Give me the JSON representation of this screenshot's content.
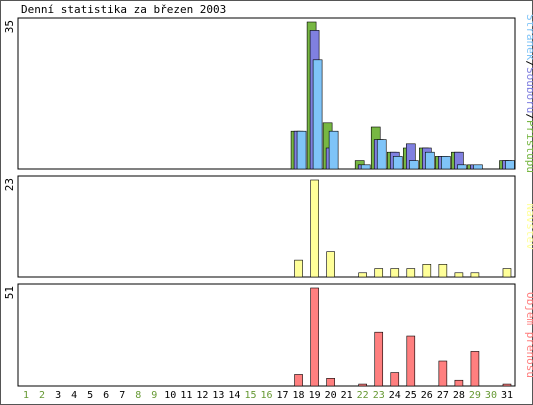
{
  "chart_data": {
    "type": "bar",
    "title": "Denní statistika za březen 2003",
    "x": [
      "1",
      "2",
      "3",
      "4",
      "5",
      "6",
      "7",
      "8",
      "9",
      "10",
      "11",
      "12",
      "13",
      "14",
      "15",
      "16",
      "17",
      "18",
      "19",
      "20",
      "21",
      "22",
      "23",
      "24",
      "25",
      "26",
      "27",
      "28",
      "29",
      "30",
      "31"
    ],
    "weekend_days": [
      "1",
      "2",
      "8",
      "9",
      "15",
      "16",
      "22",
      "23",
      "29",
      "30"
    ],
    "panels": [
      {
        "id": "traffic",
        "max_label": "35",
        "ylim": [
          0,
          35
        ],
        "legend": [
          "Stránek",
          "Souborů",
          "Přístupů"
        ],
        "legend_separator": "/",
        "series": [
          {
            "name": "Přístupů",
            "color": "#77b743",
            "values": [
              0,
              0,
              0,
              0,
              0,
              0,
              0,
              0,
              0,
              0,
              0,
              0,
              0,
              0,
              0,
              0,
              0,
              9,
              35,
              11,
              0,
              2,
              10,
              4,
              5,
              5,
              3,
              4,
              1,
              0,
              2
            ]
          },
          {
            "name": "Souborů",
            "color": "#8080e0",
            "values": [
              0,
              0,
              0,
              0,
              0,
              0,
              0,
              0,
              0,
              0,
              0,
              0,
              0,
              0,
              0,
              0,
              0,
              9,
              33,
              5,
              0,
              1,
              7,
              4,
              6,
              5,
              3,
              4,
              1,
              0,
              2
            ]
          },
          {
            "name": "Stránek",
            "color": "#7fc4f8",
            "values": [
              0,
              0,
              0,
              0,
              0,
              0,
              0,
              0,
              0,
              0,
              0,
              0,
              0,
              0,
              0,
              0,
              0,
              9,
              26,
              9,
              0,
              1,
              7,
              3,
              2,
              4,
              3,
              1,
              1,
              0,
              2
            ]
          }
        ]
      },
      {
        "id": "visits",
        "max_label": "23",
        "ylim": [
          0,
          23
        ],
        "legend": [
          "Návštěv"
        ],
        "series": [
          {
            "name": "Návštěv",
            "color": "#ffff99",
            "values": [
              0,
              0,
              0,
              0,
              0,
              0,
              0,
              0,
              0,
              0,
              0,
              0,
              0,
              0,
              0,
              0,
              0,
              4,
              23,
              6,
              0,
              1,
              2,
              2,
              2,
              3,
              3,
              1,
              1,
              0,
              2
            ]
          }
        ]
      },
      {
        "id": "volume",
        "max_label": "51",
        "ylim": [
          0,
          51
        ],
        "legend": [
          "Objem přenosu"
        ],
        "series": [
          {
            "name": "Objem přenosu",
            "color": "#ff7f7f",
            "values": [
              0,
              0,
              0,
              0,
              0,
              0,
              0,
              0,
              0,
              0,
              0,
              0,
              0,
              0,
              0,
              0,
              0,
              6,
              51,
              4,
              0,
              1,
              28,
              7,
              26,
              0,
              13,
              3,
              18,
              0,
              1
            ]
          }
        ]
      }
    ]
  },
  "colors": {
    "weekday_label": "#000000",
    "weekend_label": "#669933",
    "frame": "#000000",
    "background": "#ffffff"
  }
}
